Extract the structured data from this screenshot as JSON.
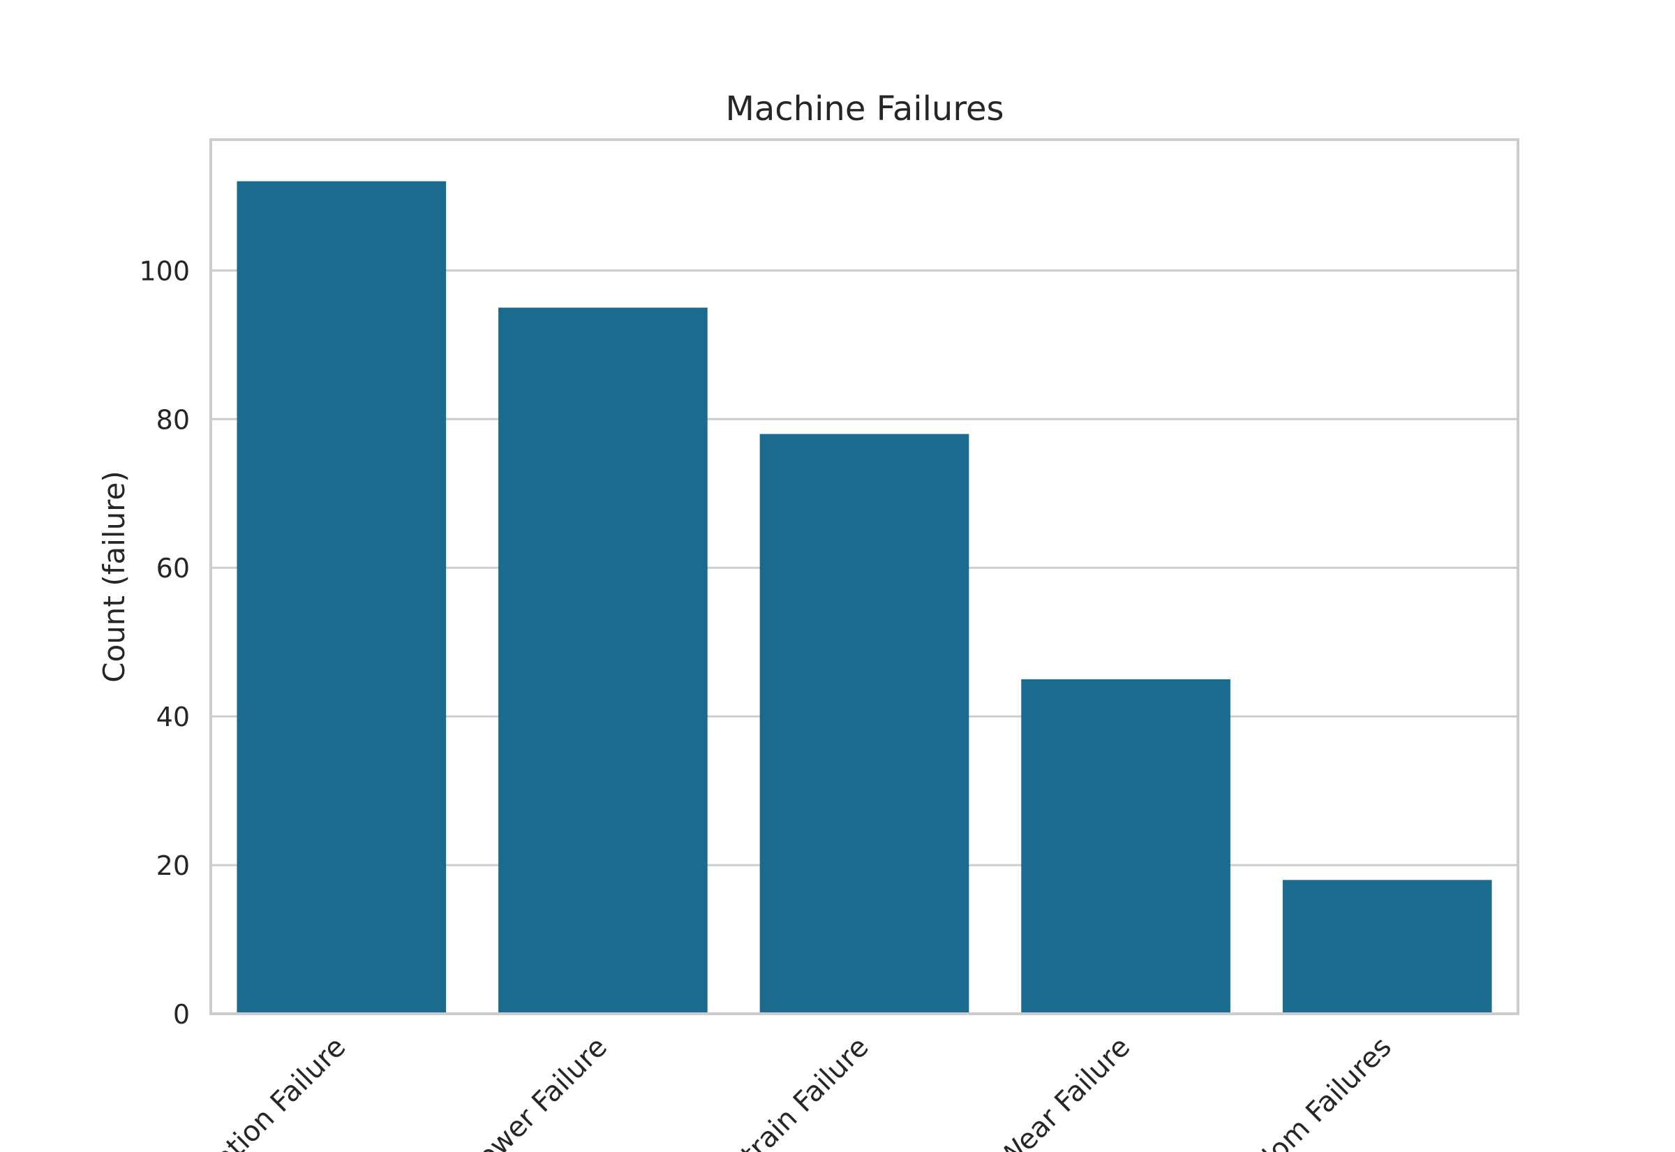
{
  "chart_data": {
    "type": "bar",
    "title": "Machine Failures",
    "xlabel": "",
    "ylabel": "Count (failure)",
    "categories": [
      "ation Failure",
      "Power Failure",
      "strain Failure",
      "Wear Failure",
      "dom Failures"
    ],
    "values": [
      112,
      95,
      78,
      45,
      18
    ],
    "ylim": [
      0,
      117.6
    ],
    "yticks": [
      0,
      20,
      40,
      60,
      80,
      100
    ],
    "grid": "horizontal",
    "legend": "none",
    "colors": {
      "bar": "#1a6b8e",
      "grid": "#cccccc",
      "frame": "#cccccc",
      "text": "#262626",
      "background": "#ffffff"
    }
  }
}
